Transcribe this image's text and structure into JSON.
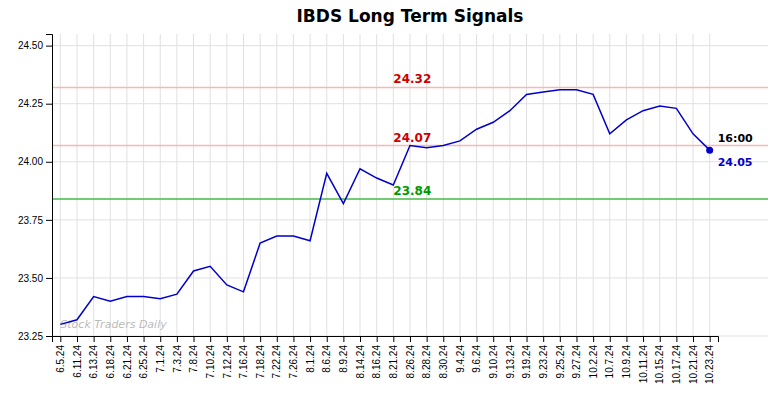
{
  "chart_data": {
    "type": "line",
    "title": "IBDS Long Term Signals",
    "categories": [
      "6.5.24",
      "6.11.24",
      "6.13.24",
      "6.18.24",
      "6.21.24",
      "6.25.24",
      "7.1.24",
      "7.3.24",
      "7.8.24",
      "7.10.24",
      "7.12.24",
      "7.16.24",
      "7.18.24",
      "7.22.24",
      "7.26.24",
      "8.1.24",
      "8.6.24",
      "8.9.24",
      "8.14.24",
      "8.16.24",
      "8.21.24",
      "8.26.24",
      "8.28.24",
      "8.30.24",
      "9.4.24",
      "9.6.24",
      "9.10.24",
      "9.13.24",
      "9.19.24",
      "9.23.24",
      "9.25.24",
      "9.27.24",
      "10.2.24",
      "10.7.24",
      "10.9.24",
      "10.11.24",
      "10.15.24",
      "10.17.24",
      "10.21.24",
      "10.23.24"
    ],
    "values": [
      23.3,
      23.32,
      23.42,
      23.4,
      23.42,
      23.42,
      23.41,
      23.43,
      23.53,
      23.55,
      23.47,
      23.44,
      23.65,
      23.68,
      23.68,
      23.66,
      23.95,
      23.82,
      23.97,
      23.93,
      23.9,
      24.07,
      24.06,
      24.07,
      24.09,
      24.14,
      24.17,
      24.22,
      24.29,
      24.3,
      24.31,
      24.31,
      24.29,
      24.12,
      24.18,
      24.22,
      24.24,
      24.23,
      24.12,
      24.05
    ],
    "color": "#0000cc",
    "marker": "last",
    "ylim": [
      23.25,
      24.55
    ],
    "yticks": [
      23.25,
      {
        "value": 23.5,
        "label": "23.50"
      },
      23.75,
      {
        "value": 24.0,
        "label": "24.00"
      },
      24.25,
      {
        "value": 24.5,
        "label": "24.50"
      }
    ],
    "grid": true,
    "hlines": [
      {
        "value": 24.32,
        "label": "24.32",
        "color": "#f5b8b8",
        "label_color": "#cc0000"
      },
      {
        "value": 24.07,
        "label": "24.07",
        "color": "#f5b8b8",
        "label_color": "#cc0000"
      },
      {
        "value": 23.84,
        "label": "23.84",
        "color": "#44bb44",
        "label_color": "#009900"
      }
    ],
    "last_point_labels": [
      "16:00",
      "24.05"
    ],
    "watermark": "Stock Traders Daily"
  }
}
